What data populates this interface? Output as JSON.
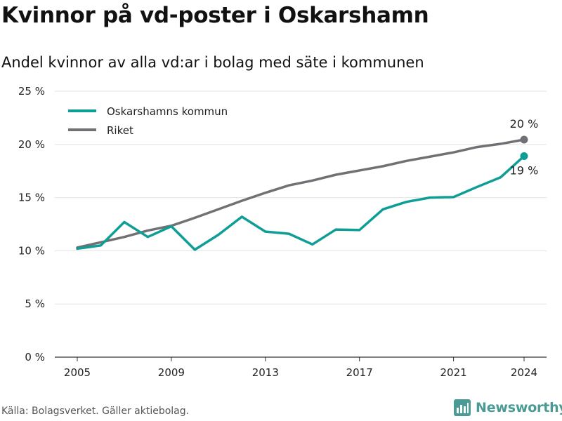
{
  "title": "Kvinnor på vd-poster i Oskarshamn",
  "subtitle": "Andel kvinnor av alla vd:ar i bolag med säte i kommunen",
  "source": "Källa: Bolagsverket. Gäller aktiebolag.",
  "brand": {
    "name": "Newsworthy",
    "icon": "newsworthy-logo-icon"
  },
  "colors": {
    "kommun": "#0f9e96",
    "riket": "#707075",
    "grid": "#e2e2e2",
    "axis": "#333333"
  },
  "chart_data": {
    "type": "line",
    "x": [
      2005,
      2006,
      2007,
      2008,
      2009,
      2010,
      2011,
      2012,
      2013,
      2014,
      2015,
      2016,
      2017,
      2018,
      2019,
      2020,
      2021,
      2022,
      2023,
      2024
    ],
    "xticks": [
      2005,
      2009,
      2013,
      2017,
      2021,
      2024
    ],
    "xtick_labels": [
      "2005",
      "2009",
      "2013",
      "2017",
      "2021",
      "2024"
    ],
    "yticks": [
      0,
      5,
      10,
      15,
      20,
      25
    ],
    "ytick_labels": [
      "0 %",
      "5 %",
      "10 %",
      "15 %",
      "20 %",
      "25 %"
    ],
    "ylim": [
      0,
      25
    ],
    "xlim": [
      2004,
      2025
    ],
    "grid": true,
    "legend_position": "top-left",
    "series": [
      {
        "name": "Oskarshamns kommun",
        "color": "#0f9e96",
        "values": [
          10.2,
          10.5,
          12.7,
          11.3,
          12.3,
          10.1,
          11.5,
          13.2,
          11.8,
          11.6,
          10.6,
          12.0,
          11.95,
          13.9,
          14.6,
          15.0,
          15.05,
          16.0,
          16.9,
          18.9
        ],
        "end_label": "19 %"
      },
      {
        "name": "Riket",
        "color": "#707075",
        "values": [
          10.3,
          10.8,
          11.3,
          11.9,
          12.35,
          13.1,
          13.9,
          14.7,
          15.45,
          16.15,
          16.6,
          17.15,
          17.55,
          17.95,
          18.45,
          18.85,
          19.25,
          19.75,
          20.05,
          20.45
        ],
        "end_label": "20 %"
      }
    ]
  }
}
